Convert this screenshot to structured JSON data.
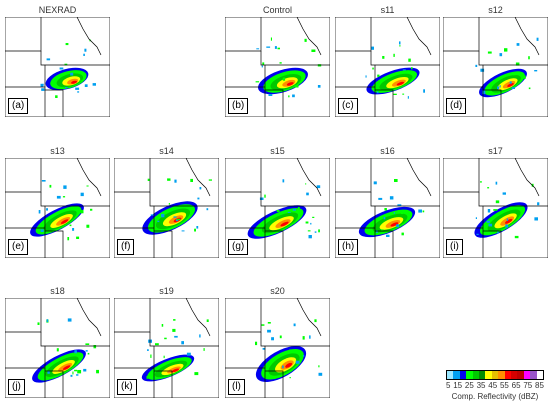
{
  "panels": [
    {
      "title": "NEXRAD",
      "letter": "(a)"
    },
    {
      "title": "Control",
      "letter": "(b)"
    },
    {
      "title": "s11",
      "letter": "(c)"
    },
    {
      "title": "s12",
      "letter": "(d)"
    },
    {
      "title": "s13",
      "letter": "(e)"
    },
    {
      "title": "s14",
      "letter": "(f)"
    },
    {
      "title": "s15",
      "letter": "(g)"
    },
    {
      "title": "s16",
      "letter": "(h)"
    },
    {
      "title": "s17",
      "letter": "(i)"
    },
    {
      "title": "s18",
      "letter": "(j)"
    },
    {
      "title": "s19",
      "letter": "(k)"
    },
    {
      "title": "s20",
      "letter": "(l)"
    }
  ],
  "colorbar": {
    "ticks": [
      "5",
      "15",
      "25",
      "35",
      "45",
      "55",
      "65",
      "75",
      "85"
    ],
    "label": "Comp. Reflectivity (dBZ)",
    "colors": [
      "#9be7ff",
      "#00a0f0",
      "#0000f0",
      "#00ff00",
      "#00c800",
      "#008c00",
      "#ffff00",
      "#e7c000",
      "#ff9000",
      "#ff0000",
      "#d60000",
      "#c00000",
      "#ff00ff",
      "#9955c9",
      "#ffffff"
    ]
  }
}
